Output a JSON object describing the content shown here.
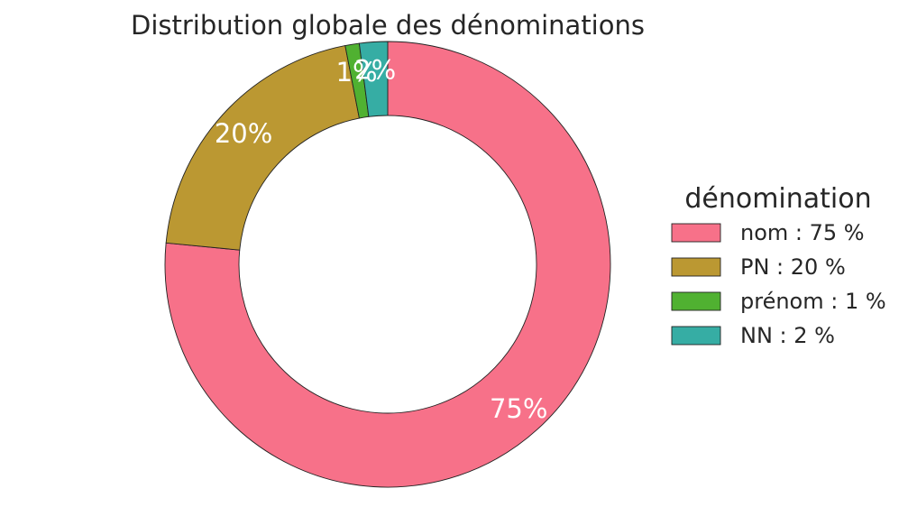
{
  "chart_data": {
    "type": "pie",
    "donut": true,
    "title": "Distribution globale des dénominations",
    "slices": [
      {
        "name": "nom",
        "value": 75,
        "label": "75%",
        "legend": "nom : 75 %",
        "color": "#f77189"
      },
      {
        "name": "PN",
        "value": 20,
        "label": "20%",
        "legend": "PN : 20 %",
        "color": "#bb9832"
      },
      {
        "name": "prénom",
        "value": 1,
        "label": "1%",
        "legend": "prénom : 1 %",
        "color": "#50b131"
      },
      {
        "name": "NN",
        "value": 2,
        "label": "2%",
        "legend": "NN : 2 %",
        "color": "#36ada4"
      }
    ],
    "legend": {
      "title": "dénomination",
      "placement": "right"
    }
  }
}
